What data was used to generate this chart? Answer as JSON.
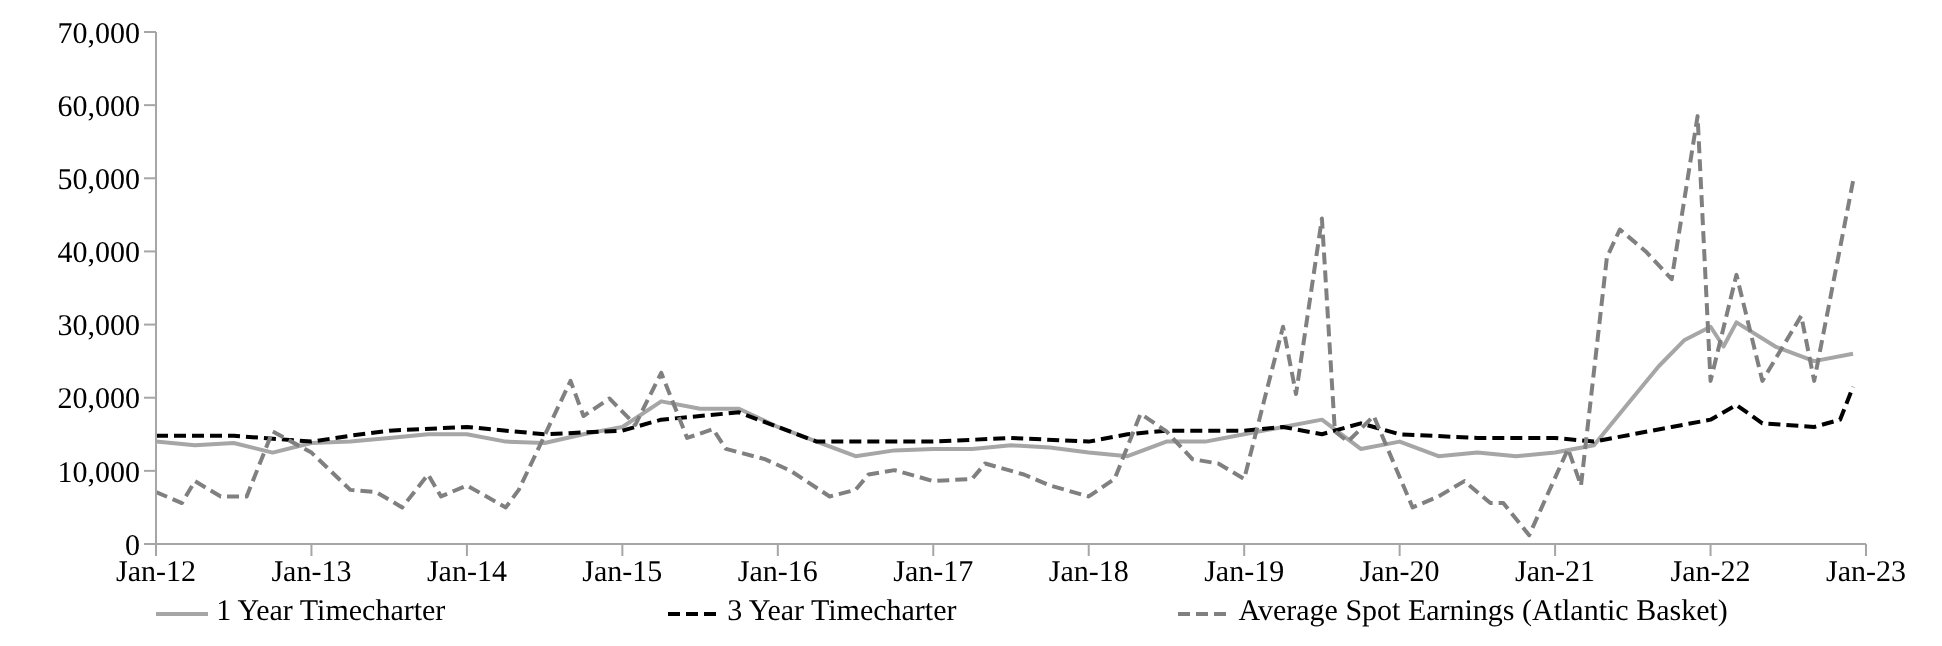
{
  "chart_data": {
    "type": "line",
    "xlim": [
      "2012-01",
      "2023-01"
    ],
    "xticks": [
      {
        "value": "2012-01",
        "label": "Jan-12"
      },
      {
        "value": "2013-01",
        "label": "Jan-13"
      },
      {
        "value": "2014-01",
        "label": "Jan-14"
      },
      {
        "value": "2015-01",
        "label": "Jan-15"
      },
      {
        "value": "2016-01",
        "label": "Jan-16"
      },
      {
        "value": "2017-01",
        "label": "Jan-17"
      },
      {
        "value": "2018-01",
        "label": "Jan-18"
      },
      {
        "value": "2019-01",
        "label": "Jan-19"
      },
      {
        "value": "2020-01",
        "label": "Jan-20"
      },
      {
        "value": "2021-01",
        "label": "Jan-21"
      },
      {
        "value": "2022-01",
        "label": "Jan-22"
      },
      {
        "value": "2023-01",
        "label": "Jan-23"
      }
    ],
    "ylim": [
      0,
      70000
    ],
    "yticks": [
      {
        "value": 0,
        "label": "0"
      },
      {
        "value": 10000,
        "label": "10,000"
      },
      {
        "value": 20000,
        "label": "20,000"
      },
      {
        "value": 30000,
        "label": "30,000"
      },
      {
        "value": 40000,
        "label": "40,000"
      },
      {
        "value": 50000,
        "label": "50,000"
      },
      {
        "value": 60000,
        "label": "60,000"
      },
      {
        "value": 70000,
        "label": "70,000"
      }
    ],
    "grid": false,
    "legend": "bottom",
    "marker": "none",
    "series": [
      {
        "name": "1 Year Timecharter",
        "color": "#a6a6a6",
        "line_style": "solid",
        "x": [
          "2012-01",
          "2012-04",
          "2012-07",
          "2012-10",
          "2013-01",
          "2013-04",
          "2013-07",
          "2013-10",
          "2014-01",
          "2014-04",
          "2014-07",
          "2014-10",
          "2015-01",
          "2015-04",
          "2015-07",
          "2015-10",
          "2016-01",
          "2016-04",
          "2016-07",
          "2016-10",
          "2017-01",
          "2017-04",
          "2017-07",
          "2017-10",
          "2018-01",
          "2018-04",
          "2018-07",
          "2018-10",
          "2019-01",
          "2019-04",
          "2019-07",
          "2019-10",
          "2020-01",
          "2020-04",
          "2020-07",
          "2020-10",
          "2021-01",
          "2021-04",
          "2021-07",
          "2021-09",
          "2021-11",
          "2022-01",
          "2022-02",
          "2022-03",
          "2022-06",
          "2022-09",
          "2022-12"
        ],
        "values": [
          14000,
          13500,
          13800,
          12500,
          13800,
          14000,
          14500,
          15000,
          15000,
          14000,
          13800,
          15000,
          16000,
          19500,
          18500,
          18500,
          16000,
          14000,
          12000,
          12800,
          13000,
          13000,
          13500,
          13200,
          12500,
          12000,
          14000,
          14000,
          15000,
          16000,
          17000,
          13000,
          14000,
          12000,
          12500,
          12000,
          12500,
          13500,
          20000,
          24300,
          27900,
          29700,
          27000,
          30300,
          27000,
          25000,
          26000
        ]
      },
      {
        "name": "3 Year Timecharter",
        "color": "#000000",
        "line_style": "dashed",
        "x": [
          "2012-01",
          "2012-07",
          "2013-01",
          "2013-04",
          "2013-07",
          "2014-01",
          "2014-07",
          "2015-01",
          "2015-04",
          "2015-07",
          "2015-10",
          "2016-01",
          "2016-04",
          "2017-01",
          "2017-07",
          "2018-01",
          "2018-04",
          "2018-07",
          "2019-01",
          "2019-04",
          "2019-07",
          "2019-10",
          "2020-01",
          "2020-07",
          "2021-01",
          "2021-04",
          "2021-07",
          "2021-10",
          "2022-01",
          "2022-03",
          "2022-05",
          "2022-09",
          "2022-11",
          "2022-12"
        ],
        "values": [
          14800,
          14800,
          14000,
          14800,
          15500,
          16000,
          15000,
          15500,
          17000,
          17500,
          18000,
          16000,
          14000,
          14000,
          14500,
          14000,
          15000,
          15500,
          15500,
          16000,
          15000,
          16500,
          15000,
          14500,
          14500,
          14000,
          15000,
          16000,
          17000,
          19000,
          16500,
          16000,
          17000,
          21500
        ]
      },
      {
        "name": "Average Spot Earnings (Atlantic Basket)",
        "color": "#808080",
        "line_style": "dashed",
        "x": [
          "2012-01",
          "2012-03",
          "2012-04",
          "2012-06",
          "2012-08",
          "2012-10",
          "2013-01",
          "2013-04",
          "2013-06",
          "2013-08",
          "2013-10",
          "2013-11",
          "2014-01",
          "2014-04",
          "2014-05",
          "2014-09",
          "2014-10",
          "2014-12",
          "2015-02",
          "2015-04",
          "2015-06",
          "2015-08",
          "2015-09",
          "2015-12",
          "2016-02",
          "2016-05",
          "2016-07",
          "2016-08",
          "2016-10",
          "2017-01",
          "2017-04",
          "2017-05",
          "2017-08",
          "2017-10",
          "2018-01",
          "2018-03",
          "2018-05",
          "2018-07",
          "2018-09",
          "2018-11",
          "2019-01",
          "2019-03",
          "2019-04",
          "2019-05",
          "2019-07",
          "2019-08",
          "2019-09",
          "2019-11",
          "2020-02",
          "2020-04",
          "2020-06",
          "2020-08",
          "2020-09",
          "2020-11",
          "2021-02",
          "2021-03",
          "2021-05",
          "2021-06",
          "2021-08",
          "2021-10",
          "2021-12",
          "2022-01",
          "2022-03",
          "2022-05",
          "2022-08",
          "2022-09",
          "2022-12"
        ],
        "values": [
          7100,
          5600,
          8600,
          6500,
          6500,
          15400,
          12500,
          7400,
          7100,
          5000,
          9500,
          6500,
          8000,
          5000,
          7400,
          22300,
          17500,
          19900,
          16300,
          23400,
          14500,
          15700,
          13000,
          11600,
          10000,
          6500,
          7400,
          9500,
          10100,
          8600,
          8900,
          11000,
          9500,
          8000,
          6500,
          8900,
          17800,
          15400,
          11600,
          11000,
          8900,
          22800,
          29700,
          20500,
          44500,
          15400,
          14000,
          17500,
          5000,
          6500,
          8600,
          5600,
          5600,
          1200,
          13000,
          8000,
          39200,
          43000,
          40000,
          36200,
          58500,
          22300,
          36800,
          22300,
          31200,
          22300,
          49600
        ]
      }
    ]
  }
}
